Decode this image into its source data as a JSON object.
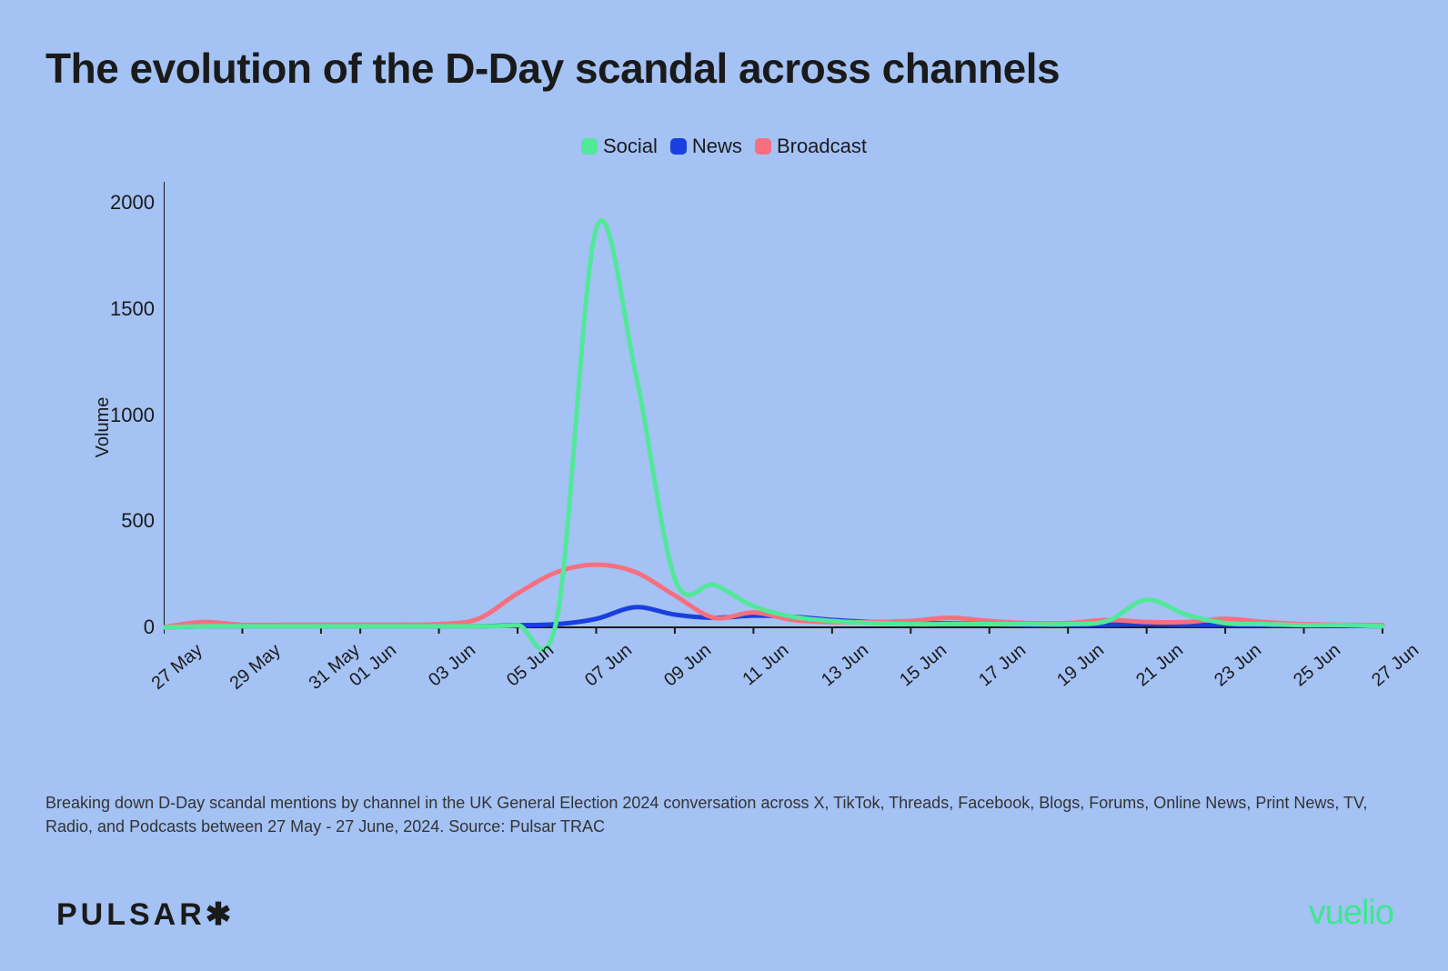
{
  "title": "The evolution of the D-Day scandal across channels",
  "legend": {
    "items": [
      {
        "label": "Social",
        "color": "#52e89a"
      },
      {
        "label": "News",
        "color": "#1a3fe0"
      },
      {
        "label": "Broadcast",
        "color": "#f76f7f"
      }
    ]
  },
  "chart": {
    "type": "line",
    "background_color": "#a4c2f4",
    "axis_color": "#1a1a1a",
    "line_width": 5,
    "ylabel": "Volume",
    "label_fontsize": 20,
    "tick_fontsize": 22,
    "ylim": [
      0,
      2100
    ],
    "yticks": [
      0,
      500,
      1000,
      1500,
      2000
    ],
    "xdomain": [
      0,
      31
    ],
    "xticks": [
      {
        "pos": 0,
        "label": "27 May"
      },
      {
        "pos": 2,
        "label": "29 May"
      },
      {
        "pos": 4,
        "label": "31 May"
      },
      {
        "pos": 5,
        "label": "01 Jun"
      },
      {
        "pos": 7,
        "label": "03 Jun"
      },
      {
        "pos": 9,
        "label": "05 Jun"
      },
      {
        "pos": 11,
        "label": "07 Jun"
      },
      {
        "pos": 13,
        "label": "09 Jun"
      },
      {
        "pos": 15,
        "label": "11 Jun"
      },
      {
        "pos": 17,
        "label": "13 Jun"
      },
      {
        "pos": 19,
        "label": "15 Jun"
      },
      {
        "pos": 21,
        "label": "17 Jun"
      },
      {
        "pos": 23,
        "label": "19 Jun"
      },
      {
        "pos": 25,
        "label": "21 Jun"
      },
      {
        "pos": 27,
        "label": "23 Jun"
      },
      {
        "pos": 29,
        "label": "25 Jun"
      },
      {
        "pos": 31,
        "label": "27 Jun"
      }
    ],
    "series": [
      {
        "name": "Social",
        "color": "#52e89a",
        "values": [
          0,
          5,
          5,
          5,
          5,
          5,
          5,
          5,
          5,
          10,
          40,
          1880,
          1200,
          230,
          200,
          100,
          50,
          30,
          20,
          15,
          15,
          15,
          15,
          15,
          30,
          130,
          60,
          20,
          15,
          10,
          10,
          5
        ]
      },
      {
        "name": "News",
        "color": "#1a3fe0",
        "values": [
          0,
          5,
          5,
          5,
          5,
          5,
          5,
          5,
          5,
          10,
          15,
          40,
          95,
          60,
          45,
          55,
          50,
          35,
          25,
          20,
          18,
          15,
          12,
          12,
          12,
          15,
          12,
          12,
          10,
          10,
          8,
          5
        ]
      },
      {
        "name": "Broadcast",
        "color": "#f76f7f",
        "values": [
          0,
          25,
          12,
          12,
          12,
          12,
          12,
          15,
          40,
          160,
          260,
          295,
          260,
          150,
          45,
          70,
          35,
          25,
          25,
          30,
          45,
          30,
          20,
          20,
          35,
          25,
          25,
          40,
          25,
          15,
          12,
          10
        ]
      }
    ]
  },
  "caption": "Breaking down D-Day scandal mentions by channel in the UK General Election 2024 conversation across X, TikTok, Threads, Facebook, Blogs, Forums, Online News, Print News, TV, Radio, and Podcasts between 27 May - 27 June, 2024. Source: Pulsar TRAC",
  "brand_left": "PULSAR✱",
  "brand_right": "vuelio"
}
